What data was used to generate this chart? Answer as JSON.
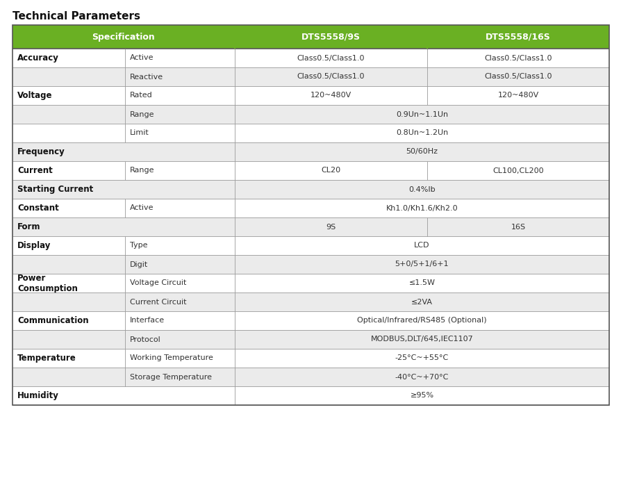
{
  "title": "Technical Parameters",
  "header_bg": "#6ab023",
  "header_text_color": "#ffffff",
  "row_bg_light": "#ebebeb",
  "row_bg_white": "#ffffff",
  "border_color": "#999999",
  "text_color": "#333333",
  "bold_color": "#111111",
  "rows": [
    {
      "group": "Accuracy",
      "group_bold": true,
      "sub": "Active",
      "col1": "Class0.5/Class1.0",
      "col2": "Class0.5/Class1.0",
      "type": "split",
      "bg": "white"
    },
    {
      "group": "",
      "group_bold": false,
      "sub": "Reactive",
      "col1": "Class0.5/Class1.0",
      "col2": "Class0.5/Class1.0",
      "type": "split",
      "bg": "light"
    },
    {
      "group": "Voltage",
      "group_bold": true,
      "sub": "Rated",
      "col1": "120~480V",
      "col2": "120~480V",
      "type": "split",
      "bg": "white"
    },
    {
      "group": "",
      "group_bold": false,
      "sub": "Range",
      "col1": "0.9Un~1.1Un",
      "col2": "",
      "type": "span",
      "bg": "light"
    },
    {
      "group": "",
      "group_bold": false,
      "sub": "Limit",
      "col1": "0.8Un~1.2Un",
      "col2": "",
      "type": "span",
      "bg": "white"
    },
    {
      "group": "Frequency",
      "group_bold": true,
      "sub": "",
      "col1": "50/60Hz",
      "col2": "",
      "type": "fullspan",
      "bg": "light"
    },
    {
      "group": "Current",
      "group_bold": true,
      "sub": "Range",
      "col1": "CL20",
      "col2": "CL100,CL200",
      "type": "split",
      "bg": "white"
    },
    {
      "group": "Starting Current",
      "group_bold": true,
      "sub": "",
      "col1": "0.4%Ib",
      "col2": "",
      "type": "fullspan",
      "bg": "light"
    },
    {
      "group": "Constant",
      "group_bold": true,
      "sub": "Active",
      "col1": "Kh1.0/Kh1.6/Kh2.0",
      "col2": "",
      "type": "span",
      "bg": "white"
    },
    {
      "group": "Form",
      "group_bold": true,
      "sub": "",
      "col1": "9S",
      "col2": "16S",
      "type": "nosub_split",
      "bg": "light"
    },
    {
      "group": "Display",
      "group_bold": true,
      "sub": "Type",
      "col1": "LCD",
      "col2": "",
      "type": "span",
      "bg": "white"
    },
    {
      "group": "",
      "group_bold": false,
      "sub": "Digit",
      "col1": "5+0/5+1/6+1",
      "col2": "",
      "type": "span",
      "bg": "light"
    },
    {
      "group": "Power\nConsumption",
      "group_bold": true,
      "sub": "Voltage Circuit",
      "col1": "≤1.5W",
      "col2": "",
      "type": "span",
      "bg": "white"
    },
    {
      "group": "",
      "group_bold": false,
      "sub": "Current Circuit",
      "col1": "≤2VA",
      "col2": "",
      "type": "span",
      "bg": "light"
    },
    {
      "group": "Communication",
      "group_bold": true,
      "sub": "Interface",
      "col1": "Optical/Infrared/RS485 (Optional)",
      "col2": "",
      "type": "span",
      "bg": "white"
    },
    {
      "group": "",
      "group_bold": false,
      "sub": "Protocol",
      "col1": "MODBUS,DLT/645,IEC1107",
      "col2": "",
      "type": "span",
      "bg": "light"
    },
    {
      "group": "Temperature",
      "group_bold": true,
      "sub": "Working Temperature",
      "col1": "-25°C~+55°C",
      "col2": "",
      "type": "span",
      "bg": "white"
    },
    {
      "group": "",
      "group_bold": false,
      "sub": "Storage Temperature",
      "col1": "-40°C~+70°C",
      "col2": "",
      "type": "span",
      "bg": "light"
    },
    {
      "group": "Humidity",
      "group_bold": true,
      "sub": "",
      "col1": "≥95%",
      "col2": "",
      "type": "fullspan",
      "bg": "white"
    }
  ]
}
